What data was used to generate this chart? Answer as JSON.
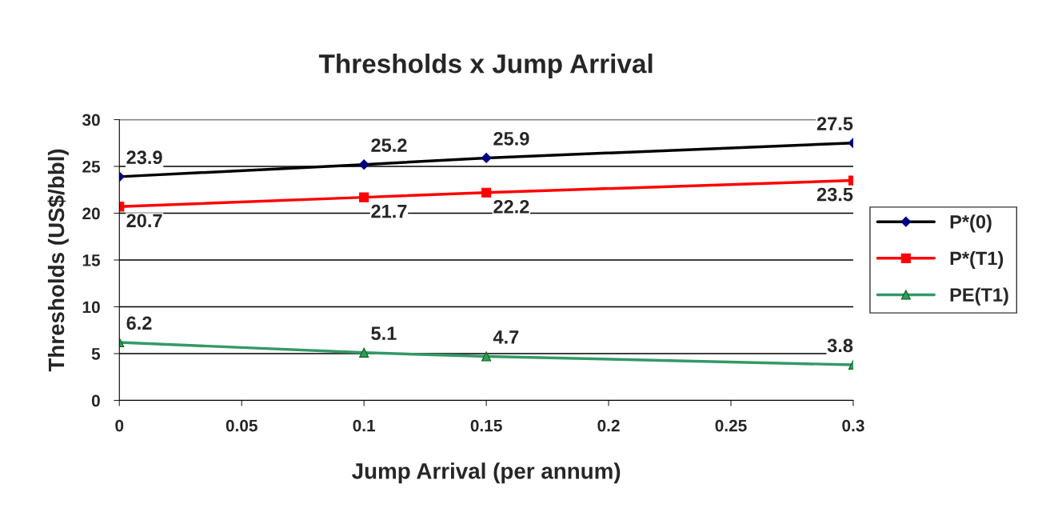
{
  "chart_data": {
    "type": "line",
    "title": "Thresholds x Jump Arrival",
    "xlabel": "Jump Arrival (per annum)",
    "ylabel": "Thresholds (US$/bbl)",
    "x": [
      0,
      0.1,
      0.15,
      0.3
    ],
    "series": [
      {
        "name": "P*(0)",
        "color": "#000000",
        "marker": "diamond",
        "values": [
          23.9,
          25.2,
          25.9,
          27.5
        ]
      },
      {
        "name": "P*(T1)",
        "color": "#ff0000",
        "marker": "square",
        "values": [
          20.7,
          21.7,
          22.2,
          23.5
        ]
      },
      {
        "name": "PE(T1)",
        "color": "#339966",
        "marker": "triangle",
        "values": [
          6.2,
          5.1,
          4.7,
          3.8
        ]
      }
    ],
    "xlim": [
      0,
      0.3
    ],
    "xticks": [
      0,
      0.05,
      0.1,
      0.15,
      0.2,
      0.25,
      0.3
    ],
    "ylim": [
      0,
      30
    ],
    "yticks": [
      0,
      5,
      10,
      15,
      20,
      25,
      30
    ],
    "grid": "y",
    "legend": "right",
    "data_labels": true,
    "line_style": "solid"
  }
}
